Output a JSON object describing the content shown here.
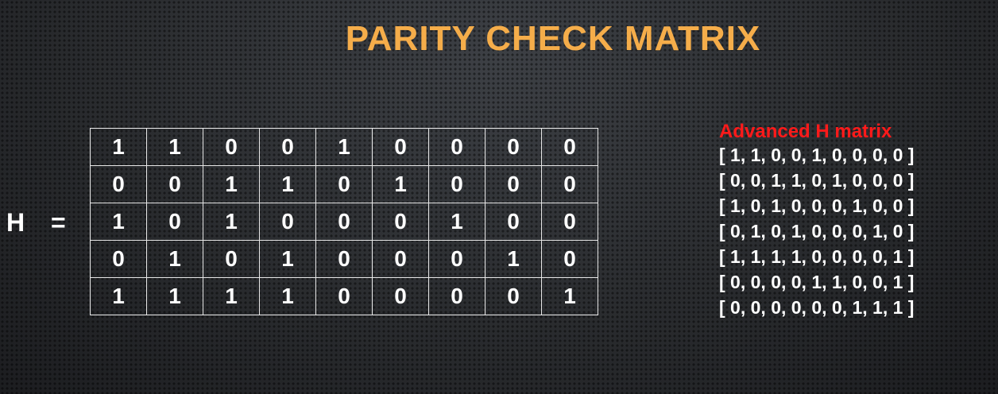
{
  "title": "PARITY CHECK MATRIX",
  "matrix_label": {
    "name": "H",
    "equals": "="
  },
  "matrix": [
    [
      "1",
      "1",
      "0",
      "0",
      "1",
      "0",
      "0",
      "0",
      "0"
    ],
    [
      "0",
      "0",
      "1",
      "1",
      "0",
      "1",
      "0",
      "0",
      "0"
    ],
    [
      "1",
      "0",
      "1",
      "0",
      "0",
      "0",
      "1",
      "0",
      "0"
    ],
    [
      "0",
      "1",
      "0",
      "1",
      "0",
      "0",
      "0",
      "1",
      "0"
    ],
    [
      "1",
      "1",
      "1",
      "1",
      "0",
      "0",
      "0",
      "0",
      "1"
    ]
  ],
  "advanced": {
    "title": "Advanced H matrix",
    "rows": [
      "[ 1, 1, 0, 0, 1, 0, 0, 0, 0 ]",
      "[ 0, 0, 1, 1, 0, 1, 0, 0, 0 ]",
      "[ 1, 0, 1, 0, 0, 0, 1, 0, 0 ]",
      "[ 0, 1, 0, 1, 0, 0, 0, 1, 0 ]",
      "[ 1, 1, 1, 1, 0, 0, 0, 0, 1 ]",
      "[ 0, 0, 0, 0, 1, 1, 0, 0, 1 ]",
      "[ 0, 0, 0, 0, 0, 0, 1, 1, 1 ]"
    ]
  },
  "colors": {
    "title": "#f5ad4a",
    "advanced_title": "#ff1a1a",
    "text": "#ffffff",
    "background": "#2e3033"
  }
}
